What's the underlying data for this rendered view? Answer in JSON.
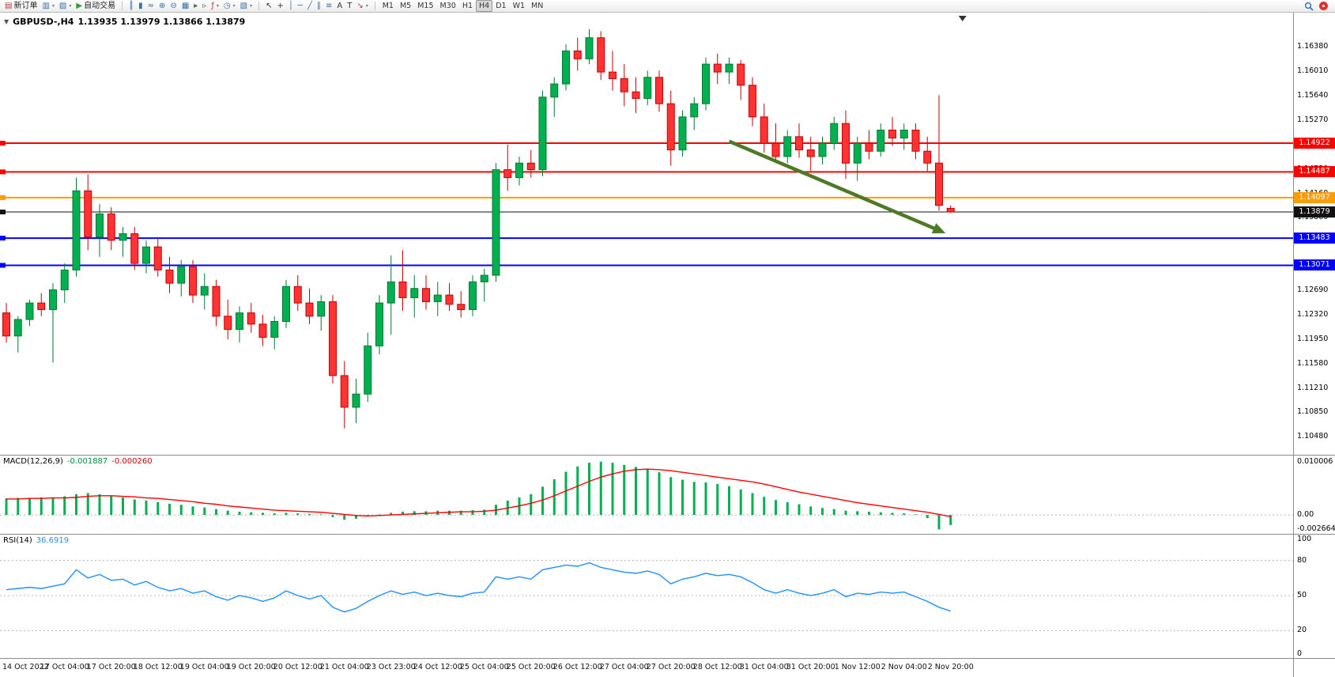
{
  "toolbar": {
    "active_timeframe": "H4",
    "groups": [
      {
        "name": "trade",
        "items": [
          {
            "name": "new-order-button",
            "glyph": "▤",
            "glyph_color": "#b23b3b",
            "label": "新订单"
          },
          {
            "name": "new-chart-button",
            "glyph": "▥",
            "glyph_color": "#3c6ea5",
            "caret": true
          },
          {
            "name": "profiles-button",
            "glyph": "▨",
            "glyph_color": "#3c6ea5",
            "caret": true
          },
          {
            "name": "autotrading-button",
            "glyph": "▶",
            "glyph_color": "#2e9e2e",
            "label": "自动交易"
          }
        ]
      },
      {
        "name": "chart-controls",
        "items": [
          {
            "name": "bars-chart-button",
            "glyph": "║",
            "glyph_color": "#3c6ea5"
          },
          {
            "name": "candles-chart-button",
            "glyph": "▮",
            "glyph_color": "#3c6ea5"
          },
          {
            "name": "line-chart-button",
            "glyph": "≈",
            "glyph_color": "#3c6ea5"
          },
          {
            "name": "zoom-in-button",
            "glyph": "⊕",
            "glyph_color": "#3c6ea5"
          },
          {
            "name": "zoom-out-button",
            "glyph": "⊖",
            "glyph_color": "#3c6ea5"
          },
          {
            "name": "tile-windows-button",
            "glyph": "▦",
            "glyph_color": "#3c6ea5"
          },
          {
            "name": "auto-scroll-button",
            "glyph": "▸",
            "glyph_color": "#2e7d32"
          },
          {
            "name": "chart-shift-button",
            "glyph": "▹",
            "glyph_color": "#555555"
          },
          {
            "name": "indicators-button",
            "glyph": "ƒ",
            "glyph_color": "#b23b3b",
            "caret": true
          },
          {
            "name": "periods-button",
            "glyph": "◷",
            "glyph_color": "#3c6ea5",
            "caret": true
          },
          {
            "name": "templates-button",
            "glyph": "▧",
            "glyph_color": "#3c6ea5",
            "caret": true
          }
        ]
      },
      {
        "name": "drawing-tools",
        "items": [
          {
            "name": "cursor-button",
            "glyph": "↖",
            "glyph_color": "#333333"
          },
          {
            "name": "crosshair-button",
            "glyph": "+",
            "glyph_color": "#333333"
          },
          {
            "name": "vertical-line-button",
            "glyph": "│",
            "glyph_color": "#3c6ea5"
          },
          {
            "name": "horizontal-line-button",
            "glyph": "─",
            "glyph_color": "#3c6ea5"
          },
          {
            "name": "trendline-button",
            "glyph": "╱",
            "glyph_color": "#3c6ea5"
          },
          {
            "name": "channel-button",
            "glyph": "∥",
            "glyph_color": "#3c6ea5"
          },
          {
            "name": "fibonacci-button",
            "glyph": "≡",
            "glyph_color": "#3c6ea5"
          },
          {
            "name": "text-button",
            "glyph": "A",
            "glyph_color": "#333333"
          },
          {
            "name": "label-button",
            "glyph": "T",
            "glyph_color": "#333333"
          },
          {
            "name": "arrows-button",
            "glyph": "↘",
            "glyph_color": "#b23b3b",
            "caret": true
          }
        ]
      },
      {
        "name": "timeframes",
        "items": [
          {
            "name": "timeframe-m1-button",
            "label": "M1"
          },
          {
            "name": "timeframe-m5-button",
            "label": "M5"
          },
          {
            "name": "timeframe-m15-button",
            "label": "M15"
          },
          {
            "name": "timeframe-m30-button",
            "label": "M30"
          },
          {
            "name": "timeframe-h1-button",
            "label": "H1"
          },
          {
            "name": "timeframe-h4-button",
            "label": "H4"
          },
          {
            "name": "timeframe-d1-button",
            "label": "D1"
          },
          {
            "name": "timeframe-w1-button",
            "label": "W1"
          },
          {
            "name": "timeframe-mn-button",
            "label": "MN"
          }
        ]
      }
    ]
  },
  "chart": {
    "collapse_glyph": "▼",
    "title": "GBPUSD-,H4",
    "ohlc_text": "1.13935 1.13979 1.13866 1.13879"
  },
  "macd": {
    "label": "MACD(12,26,9)",
    "value_main": "-0.001887",
    "value_signal": "-0.000260",
    "axis": [
      "0.010006",
      "0.00",
      "-0.002664"
    ]
  },
  "rsi": {
    "label": "RSI(14)",
    "value": "36.6919",
    "axis": [
      "100",
      "80",
      "50",
      "20",
      "0"
    ]
  },
  "chart_data": {
    "type": "candlestick",
    "symbol": "GBPUSD-",
    "timeframe": "H4",
    "colors": {
      "up": "#00b050",
      "up_edge": "#007a33",
      "down": "#ff3333",
      "down_edge": "#c40000"
    },
    "price_axis": {
      "max": 1.169,
      "min": 1.102,
      "ticks": [
        "1.16380",
        "1.16010",
        "1.15640",
        "1.15270",
        "1.14900",
        "1.14530",
        "1.14160",
        "1.13800",
        "1.13430",
        "1.13060",
        "1.12690",
        "1.12320",
        "1.11950",
        "1.11580",
        "1.11210",
        "1.10850",
        "1.10480"
      ]
    },
    "x_labels": [
      "14 Oct 2022",
      "17 Oct 04:00",
      "17 Oct 20:00",
      "18 Oct 12:00",
      "19 Oct 04:00",
      "19 Oct 20:00",
      "20 Oct 12:00",
      "21 Oct 04:00",
      "23 Oct 23:00",
      "24 Oct 12:00",
      "25 Oct 04:00",
      "25 Oct 20:00",
      "26 Oct 12:00",
      "27 Oct 04:00",
      "27 Oct 20:00",
      "28 Oct 12:00",
      "31 Oct 04:00",
      "31 Oct 20:00",
      "1 Nov 12:00",
      "2 Nov 04:00",
      "2 Nov 20:00"
    ],
    "x_label_start_index": 1,
    "x_label_every": 4,
    "hlines": [
      {
        "price": 1.14922,
        "label": "1.14922",
        "color": "#ff0000",
        "width": 2
      },
      {
        "price": 1.14487,
        "label": "1.14487",
        "color": "#ff0000",
        "width": 2
      },
      {
        "price": 1.14097,
        "label": "1.14097",
        "color": "#ff9c00",
        "width": 2
      },
      {
        "price": 1.13879,
        "label": "1.13879",
        "color": "#111111",
        "width": 1
      },
      {
        "price": 1.13483,
        "label": "1.13483",
        "color": "#0000ff",
        "width": 2
      },
      {
        "price": 1.13071,
        "label": "1.13071",
        "color": "#0000ff",
        "width": 2
      }
    ],
    "trend_arrow": {
      "from_index": 62,
      "from_price": 1.1495,
      "to_index": 80,
      "to_price": 1.136,
      "color": "#4e7a27"
    },
    "candles_ohlc": [
      [
        1.1235,
        1.125,
        1.119,
        1.12
      ],
      [
        1.12,
        1.123,
        1.1175,
        1.1225
      ],
      [
        1.1225,
        1.1255,
        1.1215,
        1.125
      ],
      [
        1.125,
        1.1265,
        1.123,
        1.124
      ],
      [
        1.124,
        1.128,
        1.116,
        1.127
      ],
      [
        1.127,
        1.131,
        1.125,
        1.13
      ],
      [
        1.13,
        1.144,
        1.129,
        1.142
      ],
      [
        1.142,
        1.1445,
        1.133,
        1.135
      ],
      [
        1.135,
        1.14,
        1.132,
        1.1385
      ],
      [
        1.1385,
        1.1395,
        1.133,
        1.1345
      ],
      [
        1.1345,
        1.1365,
        1.132,
        1.1355
      ],
      [
        1.1355,
        1.1365,
        1.13,
        1.131
      ],
      [
        1.131,
        1.1345,
        1.1295,
        1.1335
      ],
      [
        1.1335,
        1.135,
        1.129,
        1.13
      ],
      [
        1.13,
        1.132,
        1.1265,
        1.128
      ],
      [
        1.128,
        1.1315,
        1.126,
        1.1305
      ],
      [
        1.1305,
        1.1315,
        1.125,
        1.1262
      ],
      [
        1.1262,
        1.1295,
        1.124,
        1.1275
      ],
      [
        1.1275,
        1.1285,
        1.1215,
        1.123
      ],
      [
        1.123,
        1.1255,
        1.1195,
        1.121
      ],
      [
        1.121,
        1.1245,
        1.119,
        1.1235
      ],
      [
        1.1235,
        1.125,
        1.1205,
        1.1218
      ],
      [
        1.1218,
        1.1232,
        1.1185,
        1.1198
      ],
      [
        1.1198,
        1.123,
        1.118,
        1.1222
      ],
      [
        1.1222,
        1.1285,
        1.1212,
        1.1275
      ],
      [
        1.1275,
        1.1292,
        1.1238,
        1.125
      ],
      [
        1.125,
        1.1272,
        1.1218,
        1.123
      ],
      [
        1.123,
        1.1262,
        1.1208,
        1.1252
      ],
      [
        1.1252,
        1.1262,
        1.1128,
        1.114
      ],
      [
        1.114,
        1.1162,
        1.106,
        1.1092
      ],
      [
        1.1092,
        1.1135,
        1.1068,
        1.1112
      ],
      [
        1.1112,
        1.1205,
        1.11,
        1.1185
      ],
      [
        1.1185,
        1.1262,
        1.1172,
        1.125
      ],
      [
        1.125,
        1.1322,
        1.1202,
        1.1282
      ],
      [
        1.1282,
        1.133,
        1.1238,
        1.1258
      ],
      [
        1.1258,
        1.1292,
        1.1228,
        1.1272
      ],
      [
        1.1272,
        1.1292,
        1.124,
        1.1252
      ],
      [
        1.1252,
        1.1282,
        1.123,
        1.1262
      ],
      [
        1.1262,
        1.128,
        1.1238,
        1.1248
      ],
      [
        1.1248,
        1.1268,
        1.1228,
        1.124
      ],
      [
        1.124,
        1.1292,
        1.123,
        1.1282
      ],
      [
        1.1282,
        1.1302,
        1.1252,
        1.1292
      ],
      [
        1.1292,
        1.1462,
        1.1282,
        1.1452
      ],
      [
        1.1452,
        1.149,
        1.142,
        1.144
      ],
      [
        1.144,
        1.1472,
        1.1428,
        1.1462
      ],
      [
        1.1462,
        1.1482,
        1.144,
        1.1452
      ],
      [
        1.1452,
        1.1572,
        1.1442,
        1.1562
      ],
      [
        1.1562,
        1.1592,
        1.1532,
        1.1582
      ],
      [
        1.1582,
        1.1642,
        1.1572,
        1.1632
      ],
      [
        1.1632,
        1.1652,
        1.1602,
        1.162
      ],
      [
        1.162,
        1.1665,
        1.1612,
        1.1652
      ],
      [
        1.1652,
        1.1662,
        1.1588,
        1.16
      ],
      [
        1.16,
        1.1632,
        1.1572,
        1.159
      ],
      [
        1.159,
        1.1612,
        1.1548,
        1.157
      ],
      [
        1.157,
        1.1592,
        1.1538,
        1.156
      ],
      [
        1.156,
        1.1602,
        1.155,
        1.1592
      ],
      [
        1.1592,
        1.1602,
        1.154,
        1.1552
      ],
      [
        1.1552,
        1.1572,
        1.1458,
        1.1482
      ],
      [
        1.1482,
        1.1542,
        1.1472,
        1.1532
      ],
      [
        1.1532,
        1.1562,
        1.1512,
        1.1552
      ],
      [
        1.1552,
        1.1622,
        1.1542,
        1.1612
      ],
      [
        1.1612,
        1.1628,
        1.1582,
        1.16
      ],
      [
        1.16,
        1.1622,
        1.1582,
        1.1612
      ],
      [
        1.1612,
        1.1618,
        1.1558,
        1.158
      ],
      [
        1.158,
        1.1592,
        1.1518,
        1.1532
      ],
      [
        1.1532,
        1.1552,
        1.1478,
        1.1492
      ],
      [
        1.1492,
        1.1522,
        1.1462,
        1.1472
      ],
      [
        1.1472,
        1.1512,
        1.1462,
        1.1502
      ],
      [
        1.1502,
        1.1522,
        1.147,
        1.1482
      ],
      [
        1.1482,
        1.1502,
        1.145,
        1.1472
      ],
      [
        1.1472,
        1.1502,
        1.146,
        1.1492
      ],
      [
        1.1492,
        1.1532,
        1.1482,
        1.1522
      ],
      [
        1.1522,
        1.1542,
        1.1438,
        1.1462
      ],
      [
        1.1462,
        1.1502,
        1.1435,
        1.1492
      ],
      [
        1.1492,
        1.1512,
        1.1468,
        1.148
      ],
      [
        1.148,
        1.1522,
        1.1472,
        1.1512
      ],
      [
        1.1512,
        1.1532,
        1.1488,
        1.15
      ],
      [
        1.15,
        1.1522,
        1.1482,
        1.1512
      ],
      [
        1.1512,
        1.1522,
        1.1468,
        1.148
      ],
      [
        1.148,
        1.1502,
        1.145,
        1.1462
      ],
      [
        1.1462,
        1.1565,
        1.139,
        1.1398
      ],
      [
        1.13935,
        1.13979,
        1.13866,
        1.13879
      ]
    ],
    "macd": {
      "axis_max": 0.0107,
      "axis_min": -0.0031,
      "hist_color": "#00b050",
      "signal_color": "#ff0000",
      "histogram": [
        0.0031,
        0.0032,
        0.0031,
        0.0033,
        0.0033,
        0.0035,
        0.0039,
        0.0041,
        0.0039,
        0.0036,
        0.0033,
        0.0029,
        0.0027,
        0.0024,
        0.0021,
        0.0019,
        0.0016,
        0.0014,
        0.0011,
        0.0008,
        0.0006,
        0.0005,
        0.0004,
        0.0003,
        0.0004,
        0.0003,
        0.0002,
        0.0001,
        -0.0004,
        -0.0009,
        -0.0007,
        -0.0003,
        0.0001,
        0.0004,
        0.0006,
        0.0007,
        0.0007,
        0.0008,
        0.0008,
        0.0008,
        0.0009,
        0.001,
        0.0019,
        0.0027,
        0.0033,
        0.0039,
        0.0053,
        0.0067,
        0.0081,
        0.0091,
        0.0098,
        0.01,
        0.0098,
        0.0094,
        0.009,
        0.0086,
        0.008,
        0.0071,
        0.0066,
        0.0062,
        0.0061,
        0.0058,
        0.0054,
        0.0048,
        0.0041,
        0.0034,
        0.0028,
        0.0024,
        0.002,
        0.0016,
        0.0013,
        0.0011,
        0.0008,
        0.0007,
        0.0006,
        0.0005,
        0.0004,
        0.0003,
        0.0001,
        -0.0006,
        -0.0027,
        -0.0019
      ],
      "signal": [
        0.003,
        0.003,
        0.0031,
        0.0031,
        0.0032,
        0.0032,
        0.0033,
        0.0035,
        0.0036,
        0.0036,
        0.0035,
        0.0034,
        0.0032,
        0.0031,
        0.0029,
        0.0027,
        0.0025,
        0.0022,
        0.002,
        0.0017,
        0.0015,
        0.0013,
        0.0011,
        0.0009,
        0.0008,
        0.0007,
        0.0006,
        0.0005,
        0.0003,
        0.0001,
        -0.0001,
        -0.0002,
        -0.0001,
        0.0,
        0.0001,
        0.0002,
        0.0003,
        0.0004,
        0.0005,
        0.0006,
        0.0006,
        0.0007,
        0.0009,
        0.0013,
        0.0017,
        0.0022,
        0.0028,
        0.0036,
        0.0045,
        0.0054,
        0.0063,
        0.0071,
        0.0077,
        0.0082,
        0.0085,
        0.0086,
        0.0085,
        0.0083,
        0.008,
        0.0077,
        0.0074,
        0.0071,
        0.0068,
        0.0065,
        0.0062,
        0.0058,
        0.0053,
        0.0048,
        0.0043,
        0.0039,
        0.0035,
        0.0031,
        0.0027,
        0.0023,
        0.002,
        0.0017,
        0.0014,
        0.0011,
        0.0008,
        0.0005,
        0.0001,
        -0.0003
      ]
    },
    "rsi": {
      "color": "#1e90ff",
      "range": [
        0,
        100
      ],
      "levels": [
        80,
        50,
        20
      ],
      "values": [
        55,
        56,
        57,
        56,
        58,
        60,
        72,
        65,
        68,
        63,
        64,
        59,
        62,
        57,
        54,
        56,
        52,
        54,
        49,
        46,
        50,
        48,
        45,
        48,
        54,
        50,
        47,
        50,
        40,
        36,
        39,
        45,
        50,
        54,
        51,
        53,
        50,
        52,
        50,
        49,
        52,
        53,
        66,
        64,
        66,
        64,
        72,
        74,
        76,
        75,
        78,
        74,
        72,
        70,
        69,
        71,
        68,
        60,
        64,
        66,
        69,
        67,
        68,
        66,
        61,
        55,
        52,
        55,
        52,
        50,
        52,
        55,
        49,
        52,
        51,
        53,
        52,
        53,
        49,
        45,
        40,
        36.7
      ]
    }
  }
}
